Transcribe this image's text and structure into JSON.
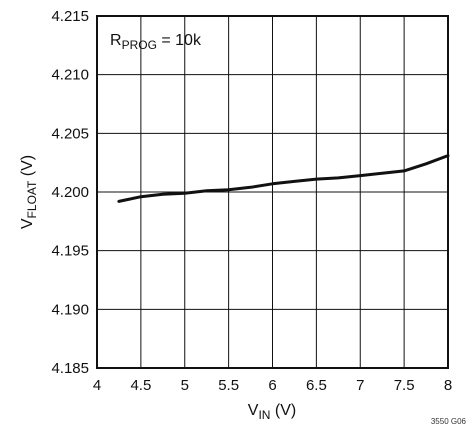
{
  "chart_data": {
    "type": "line",
    "title": "",
    "xlabel": {
      "main": "V",
      "sub": "IN",
      "unit": " (V)"
    },
    "ylabel": {
      "main": "V",
      "sub": "FLOAT",
      "unit": " (V)"
    },
    "annotation": {
      "main": "R",
      "sub": "PROG",
      "rest": " = 10k"
    },
    "figure_id": "3550 G06",
    "xlim": [
      4,
      8
    ],
    "ylim": [
      4.185,
      4.215
    ],
    "grid": true,
    "x_ticks": [
      "4",
      "4.5",
      "5",
      "5.5",
      "6",
      "6.5",
      "7",
      "7.5",
      "8"
    ],
    "y_ticks": [
      "4.185",
      "4.190",
      "4.195",
      "4.200",
      "4.205",
      "4.210",
      "4.215"
    ],
    "series": [
      {
        "x": [
          4.25,
          4.5,
          4.75,
          5.0,
          5.25,
          5.5,
          5.75,
          6.0,
          6.25,
          6.5,
          6.75,
          7.0,
          7.25,
          7.5,
          7.75,
          8.0
        ],
        "y": [
          4.1992,
          4.1996,
          4.1998,
          4.1999,
          4.2001,
          4.2002,
          4.2004,
          4.2007,
          4.2009,
          4.2011,
          4.2012,
          4.2014,
          4.2016,
          4.2018,
          4.2024,
          4.2031
        ]
      }
    ]
  }
}
